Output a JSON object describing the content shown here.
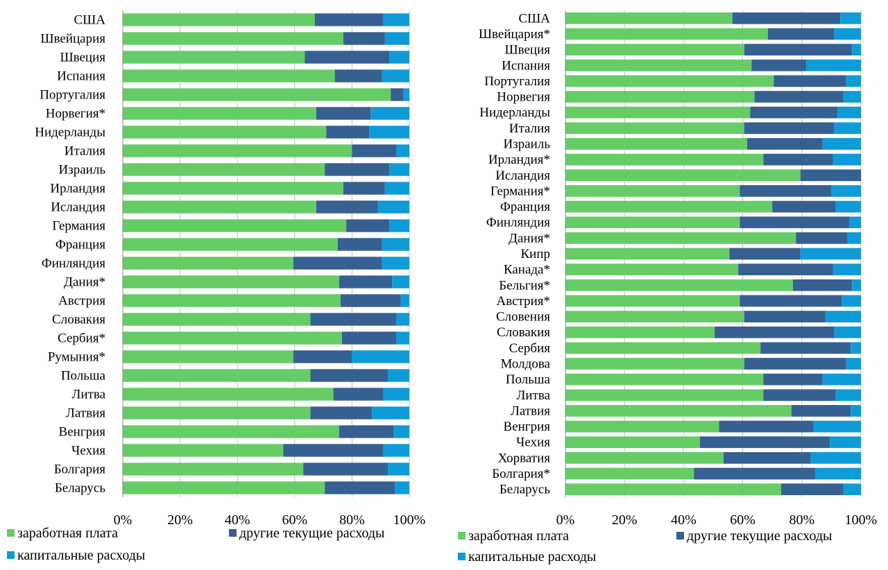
{
  "colors": {
    "salary": "#66cc66",
    "current": "#376092",
    "capital": "#0f9bd7",
    "grid": "#bfbfbf",
    "axis": "#888888"
  },
  "chart_data": [
    {
      "type": "bar",
      "orientation": "horizontal",
      "stacked": "percent",
      "xlim": [
        0,
        100
      ],
      "x_ticks": [
        "0%",
        "20%",
        "40%",
        "60%",
        "80%",
        "100%"
      ],
      "grid": true,
      "legend_position": "bottom",
      "categories": [
        "США",
        "Швейцария",
        "Швеция",
        "Испания",
        "Португалия",
        "Норвегия*",
        "Нидерланды",
        "Италия",
        "Израиль",
        "Ирландия",
        "Исландия",
        "Германия",
        "Франция",
        "Финляндия",
        "Дания*",
        "Австрия",
        "Словакия",
        "Сербия*",
        "Румыния*",
        "Польша",
        "Литва",
        "Латвия",
        "Венгрия",
        "Чехия",
        "Болгария",
        "Беларусь"
      ],
      "series": [
        {
          "name": "заработная плата",
          "color_key": "salary",
          "values": [
            67,
            77,
            63.5,
            74,
            93.5,
            67.5,
            71,
            80,
            70.5,
            77,
            67.5,
            78,
            75,
            59.5,
            75.5,
            76,
            65.5,
            76.5,
            59.5,
            65.5,
            73.5,
            65.5,
            75.5,
            56,
            63,
            70.5
          ]
        },
        {
          "name": "другие текущие расходы",
          "color_key": "current",
          "values": [
            24,
            14.5,
            29.5,
            16.5,
            4.5,
            19,
            15,
            15.5,
            22.5,
            14.5,
            21.5,
            15,
            15.5,
            31,
            18.5,
            21,
            30,
            19,
            20.5,
            27,
            17.5,
            21.5,
            19,
            35,
            29.5,
            24.5
          ]
        },
        {
          "name": "капитальные расходы",
          "color_key": "capital",
          "values": [
            9,
            8.5,
            7,
            9.5,
            2,
            13.5,
            14,
            4.5,
            7,
            8.5,
            11,
            7,
            9.5,
            9.5,
            6,
            3,
            4.5,
            4.5,
            20,
            7.5,
            9,
            13,
            5.5,
            9,
            7.5,
            5
          ]
        }
      ]
    },
    {
      "type": "bar",
      "orientation": "horizontal",
      "stacked": "percent",
      "xlim": [
        0,
        100
      ],
      "x_ticks": [
        "0%",
        "20%",
        "40%",
        "60%",
        "80%",
        "100%"
      ],
      "grid": true,
      "legend_position": "bottom",
      "categories": [
        "США",
        "Швейцария*",
        "Швеция",
        "Испания",
        "Португалия",
        "Норвегия",
        "Нидерланды",
        "Италия",
        "Израиль",
        "Ирландия*",
        "Исландия",
        "Германия*",
        "Франция",
        "Финляндия",
        "Дания*",
        "Кипр",
        "Канада*",
        "Бельгия*",
        "Австрия*",
        "Словения",
        "Словакия",
        "Сербия",
        "Молдова",
        "Польша",
        "Литва",
        "Латвия",
        "Венгрия",
        "Чехия",
        "Хорватия",
        "Болгария*",
        "Беларусь"
      ],
      "series": [
        {
          "name": "заработная плата",
          "color_key": "salary",
          "values": [
            56.5,
            68.5,
            60.5,
            63,
            70.5,
            64,
            62.5,
            60.5,
            61.5,
            67,
            79.5,
            59,
            70,
            59,
            78,
            55.5,
            58.5,
            77,
            59,
            60.5,
            50.5,
            66,
            60.5,
            67,
            67,
            76.5,
            52,
            45.5,
            53.5,
            43.5,
            73
          ]
        },
        {
          "name": "другие текущие расходы",
          "color_key": "current",
          "values": [
            36.5,
            22.5,
            36.5,
            18.5,
            24.5,
            30,
            29.5,
            30.5,
            25.5,
            23.5,
            20.5,
            31,
            21.5,
            37,
            17.5,
            24,
            32,
            20,
            34.5,
            27.5,
            40.5,
            30.5,
            34.5,
            20,
            24.5,
            20,
            32,
            44,
            29.5,
            41,
            21
          ]
        },
        {
          "name": "капитальные расходы",
          "color_key": "capital",
          "values": [
            7,
            9,
            3,
            18.5,
            5,
            6,
            8,
            9,
            13,
            9.5,
            0,
            10,
            8.5,
            4,
            4.5,
            20.5,
            9.5,
            3,
            6.5,
            12,
            9,
            3.5,
            5,
            13,
            8.5,
            3.5,
            16,
            10.5,
            17,
            15.5,
            6
          ]
        }
      ]
    }
  ]
}
